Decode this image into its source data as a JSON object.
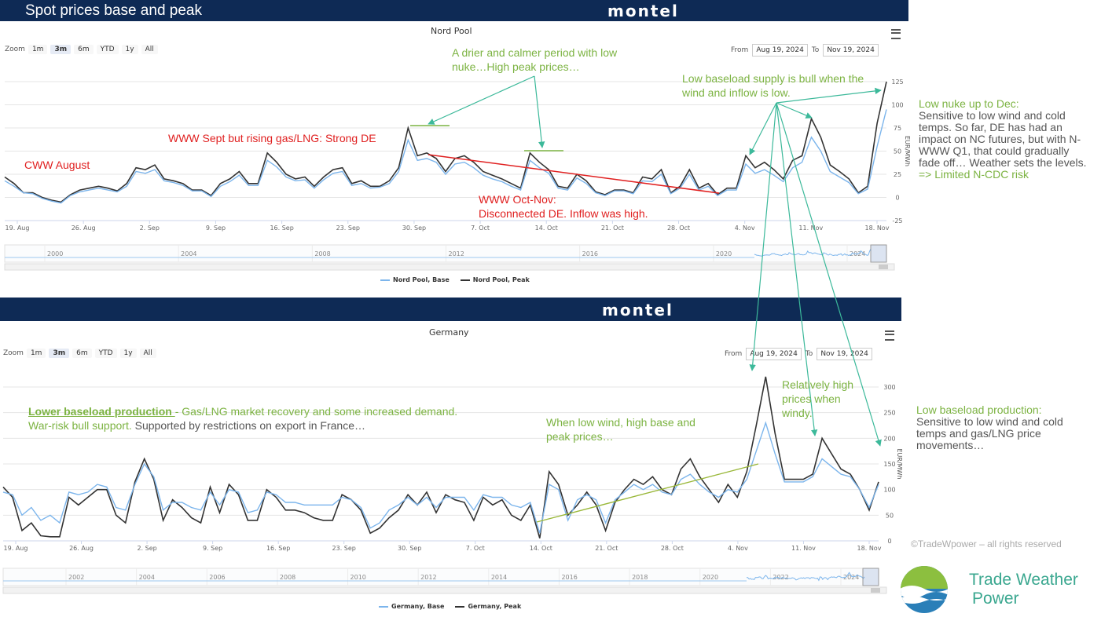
{
  "banner": {
    "title": "Spot prices base and peak",
    "brand": "montel"
  },
  "brand2": "montel",
  "zoom_label": "Zoom",
  "zoom_buttons": [
    "1m",
    "3m",
    "6m",
    "YTD",
    "1y",
    "All"
  ],
  "from_label": "From",
  "to_label": "To",
  "from_date": "Aug 19, 2024",
  "to_date": "Nov 19, 2024",
  "top_chart_title": "Nord Pool",
  "bottom_chart_title": "Germany",
  "top_ylabel": "EUR/MWh",
  "bottom_ylabel": "EUR/MWh",
  "chart_data": [
    {
      "type": "line",
      "title": "Nord Pool",
      "ylabel": "EUR/MWh",
      "ylim": [
        -25,
        125
      ],
      "yticks": [
        -25,
        0,
        25,
        50,
        75,
        100,
        125
      ],
      "x_tick_labels": [
        "19. Aug",
        "26. Aug",
        "2. Sep",
        "9. Sep",
        "16. Sep",
        "23. Sep",
        "30. Sep",
        "7. Oct",
        "14. Oct",
        "21. Oct",
        "28. Oct",
        "4. Nov",
        "11. Nov",
        "18. Nov"
      ],
      "navigator_years": [
        "2000",
        "2004",
        "2008",
        "2012",
        "2016",
        "2020",
        "2024"
      ],
      "series": [
        {
          "name": "Nord Pool, Peak",
          "color": "#333333",
          "values": [
            22,
            15,
            5,
            5,
            0,
            -3,
            -5,
            3,
            8,
            10,
            12,
            10,
            7,
            15,
            32,
            30,
            35,
            20,
            18,
            15,
            8,
            8,
            2,
            15,
            20,
            28,
            15,
            15,
            48,
            38,
            25,
            20,
            22,
            12,
            22,
            30,
            32,
            15,
            18,
            12,
            12,
            18,
            32,
            75,
            45,
            48,
            42,
            28,
            42,
            45,
            38,
            28,
            24,
            20,
            15,
            10,
            48,
            38,
            30,
            12,
            10,
            25,
            18,
            6,
            3,
            8,
            8,
            5,
            22,
            20,
            30,
            5,
            12,
            30,
            10,
            15,
            3,
            10,
            10,
            45,
            32,
            38,
            30,
            20,
            40,
            45,
            85,
            65,
            35,
            28,
            20,
            5,
            12,
            80,
            125
          ]
        },
        {
          "name": "Nord Pool, Base",
          "color": "#7cb5ec",
          "values": [
            18,
            12,
            5,
            4,
            -1,
            -4,
            -6,
            2,
            6,
            8,
            10,
            8,
            6,
            12,
            28,
            26,
            30,
            18,
            16,
            13,
            7,
            7,
            1,
            12,
            17,
            24,
            13,
            13,
            40,
            33,
            22,
            18,
            19,
            10,
            19,
            26,
            28,
            13,
            15,
            10,
            11,
            15,
            28,
            62,
            40,
            42,
            38,
            25,
            36,
            38,
            32,
            24,
            20,
            17,
            12,
            8,
            40,
            32,
            26,
            10,
            8,
            21,
            15,
            5,
            2,
            7,
            7,
            4,
            18,
            17,
            25,
            4,
            10,
            25,
            8,
            12,
            2,
            8,
            8,
            36,
            26,
            30,
            24,
            17,
            32,
            38,
            65,
            50,
            28,
            22,
            16,
            4,
            9,
            55,
            95
          ]
        }
      ]
    },
    {
      "type": "line",
      "title": "Germany",
      "ylabel": "EUR/MWh",
      "ylim": [
        0,
        300
      ],
      "yticks": [
        0,
        50,
        100,
        150,
        200,
        250,
        300
      ],
      "x_tick_labels": [
        "19. Aug",
        "26. Aug",
        "2. Sep",
        "9. Sep",
        "16. Sep",
        "23. Sep",
        "30. Sep",
        "7. Oct",
        "14. Oct",
        "21. Oct",
        "28. Oct",
        "4. Nov",
        "11. Nov",
        "18. Nov"
      ],
      "navigator_years": [
        "2002",
        "2004",
        "2006",
        "2008",
        "2010",
        "2012",
        "2014",
        "2016",
        "2018",
        "2020",
        "2022",
        "2024"
      ],
      "series": [
        {
          "name": "Germany, Peak",
          "color": "#333333",
          "values": [
            105,
            85,
            20,
            35,
            10,
            8,
            8,
            85,
            70,
            85,
            100,
            100,
            50,
            35,
            115,
            160,
            120,
            40,
            80,
            65,
            45,
            35,
            105,
            55,
            110,
            90,
            40,
            40,
            100,
            85,
            60,
            60,
            55,
            45,
            40,
            40,
            90,
            80,
            60,
            15,
            25,
            45,
            60,
            90,
            70,
            95,
            55,
            90,
            80,
            75,
            40,
            85,
            70,
            80,
            50,
            40,
            70,
            5,
            135,
            110,
            50,
            70,
            95,
            70,
            20,
            75,
            100,
            120,
            110,
            125,
            100,
            90,
            140,
            160,
            125,
            100,
            75,
            110,
            85,
            135,
            225,
            320,
            210,
            120,
            120,
            120,
            130,
            200,
            170,
            140,
            130,
            100,
            60,
            115
          ]
        },
        {
          "name": "Germany, Base",
          "color": "#7cb5ec",
          "values": [
            95,
            90,
            50,
            65,
            40,
            50,
            35,
            95,
            90,
            95,
            110,
            105,
            65,
            60,
            110,
            150,
            125,
            60,
            75,
            75,
            65,
            60,
            95,
            70,
            100,
            95,
            55,
            60,
            95,
            90,
            75,
            75,
            70,
            70,
            70,
            70,
            85,
            80,
            65,
            25,
            35,
            60,
            70,
            85,
            70,
            85,
            65,
            85,
            85,
            85,
            60,
            90,
            85,
            85,
            70,
            65,
            75,
            15,
            110,
            100,
            40,
            80,
            90,
            80,
            35,
            80,
            95,
            110,
            100,
            110,
            95,
            90,
            120,
            130,
            110,
            95,
            85,
            100,
            95,
            120,
            175,
            230,
            170,
            115,
            115,
            115,
            125,
            160,
            145,
            130,
            125,
            100,
            65,
            110
          ]
        }
      ]
    }
  ],
  "legend_top": [
    "Nord Pool, Base",
    "Nord Pool, Peak"
  ],
  "legend_bottom": [
    "Germany, Base",
    "Germany, Peak"
  ],
  "annotations": {
    "drier_calmer": "A drier and calmer period with low nuke…High peak prices…",
    "low_baseload_bull": "Low baseload supply is bull when the wind and inflow is low.",
    "www_sept": "WWW Sept but rising gas/LNG: Strong DE",
    "cww_august": "CWW August",
    "www_oct_nov_1": "WWW Oct-Nov:",
    "www_oct_nov_2": "Disconnected DE. Inflow was high.",
    "lower_baseload_title": "Lower baseload production ",
    "lower_baseload_rest": "- Gas/LNG market recovery and some increased demand.",
    "war_risk": "War-risk bull support.",
    "france": " Supported by restrictions on export in France…",
    "low_wind": "When low wind, high base and peak prices…",
    "relatively_high": "Relatively high prices when windy."
  },
  "side_top": {
    "title": "Low nuke up to Dec:",
    "body": "Sensitive to low wind and cold temps. So far, DE has had an impact on NC futures, but with N-WWW Q1, that could gradually fade off… Weather sets the levels.",
    "conclusion": "=> Limited N-CDC risk"
  },
  "side_bottom": {
    "title": "Low baseload production:",
    "body": "Sensitive to low wind and cold temps and gas/LNG price movements…"
  },
  "copyright": "©TradeWpower – all rights reserved",
  "logo": {
    "line1": "Trade Weather",
    "line2": "Power"
  },
  "colors": {
    "banner": "#0e2a55",
    "green": "#7cb342",
    "red": "#e02020",
    "teal_arrow": "#3cb99a",
    "base_line": "#7cb5ec",
    "peak_line": "#333333"
  }
}
